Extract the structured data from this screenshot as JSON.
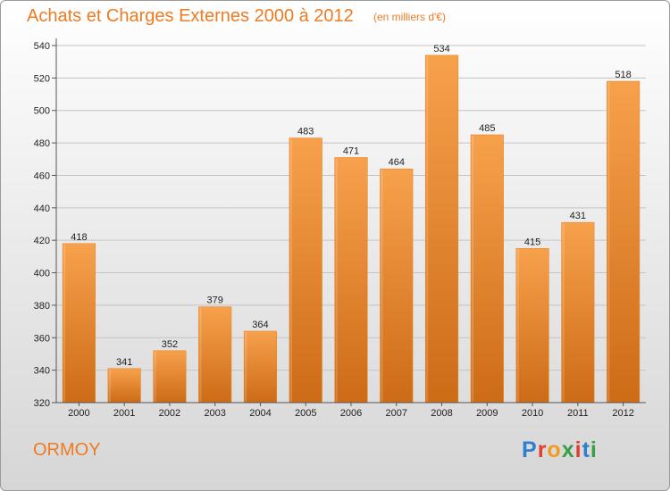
{
  "header": {
    "title": "Achats et Charges Externes 2000 à 2012",
    "subtitle": "(en milliers d'€)"
  },
  "footer": {
    "town": "ORMOY",
    "logo": "Proxiti"
  },
  "colors": {
    "accent": "#ee7b22",
    "bar_top": "#f7a14c",
    "bar_bottom": "#cd6b16"
  },
  "chart_data": {
    "type": "bar",
    "title": "Achats et Charges Externes 2000 à 2012",
    "subtitle": "(en milliers d'€)",
    "categories": [
      "2000",
      "2001",
      "2002",
      "2003",
      "2004",
      "2005",
      "2006",
      "2007",
      "2008",
      "2009",
      "2010",
      "2011",
      "2012"
    ],
    "values": [
      418,
      341,
      352,
      379,
      364,
      483,
      471,
      464,
      534,
      485,
      415,
      431,
      518
    ],
    "ylim": [
      320,
      540
    ],
    "yticks": [
      320,
      340,
      360,
      380,
      400,
      420,
      440,
      460,
      480,
      500,
      520,
      540
    ],
    "grid": true,
    "xlabel": "",
    "ylabel": ""
  }
}
